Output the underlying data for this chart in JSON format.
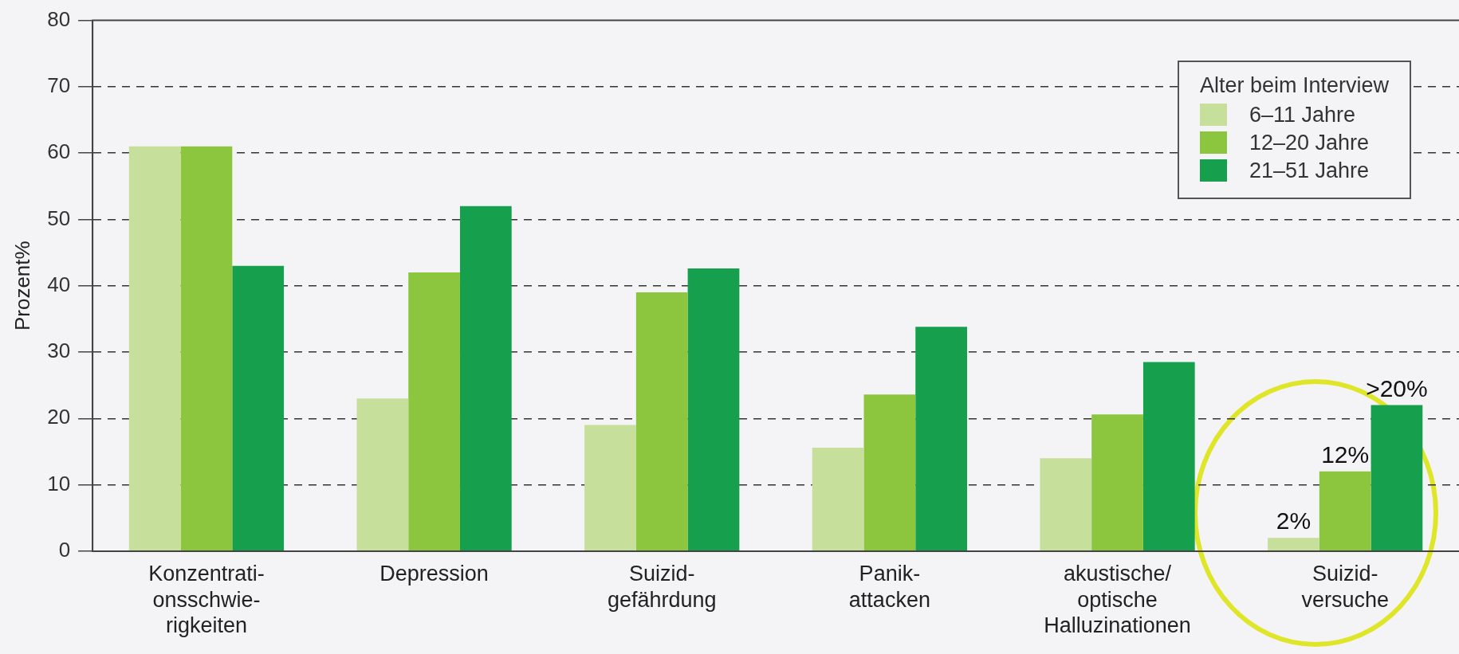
{
  "chart_data": {
    "type": "bar",
    "ylabel": "Prozent%",
    "legend_title": "Alter beim Interview",
    "categories": [
      "Konzentrati-\nonsschwie-\nrigkeiten",
      "Depression",
      "Suizid-\ngefährdung",
      "Panik-\nattacken",
      "akustische/\noptische\nHalluzinationen",
      "Suizid-\nversuche"
    ],
    "series": [
      {
        "name": "6–11 Jahre",
        "color": "#c6df9a",
        "values": [
          61,
          23,
          19,
          15.6,
          14,
          2
        ],
        "value_labels": [
          null,
          null,
          null,
          null,
          null,
          "2%"
        ]
      },
      {
        "name": "12–20 Jahre",
        "color": "#8cc63f",
        "values": [
          61,
          42,
          39,
          23.6,
          20.6,
          12
        ],
        "value_labels": [
          null,
          null,
          null,
          null,
          null,
          "12%"
        ]
      },
      {
        "name": "21–51 Jahre",
        "color": "#16a04e",
        "values": [
          43,
          52,
          42.6,
          33.8,
          28.5,
          22
        ],
        "value_labels": [
          null,
          null,
          null,
          null,
          null,
          ">20%"
        ]
      }
    ],
    "ylim": [
      0,
      80
    ],
    "yticks": [
      0,
      10,
      20,
      30,
      40,
      50,
      60,
      70,
      80
    ],
    "grid": "y",
    "legend": "top right"
  }
}
